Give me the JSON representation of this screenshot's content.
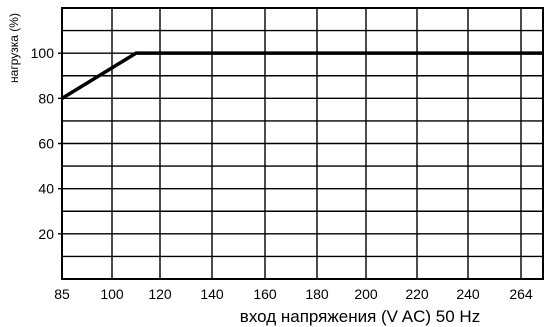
{
  "chart_data": {
    "type": "line",
    "title": "",
    "xlabel": "вход напряжения (V AC) 50 Hz",
    "ylabel": "нагрузка (%)",
    "x_ticks": [
      "85",
      "100",
      "120",
      "140",
      "160",
      "180",
      "200",
      "220",
      "240",
      "264"
    ],
    "y_ticks": [
      "20",
      "40",
      "60",
      "80",
      "100"
    ],
    "xlim": [
      85,
      270
    ],
    "ylim": [
      0,
      120
    ],
    "grid": true,
    "series": [
      {
        "x": [
          85,
          110,
          270
        ],
        "y": [
          80,
          100,
          100
        ],
        "color": "#000000"
      }
    ]
  }
}
